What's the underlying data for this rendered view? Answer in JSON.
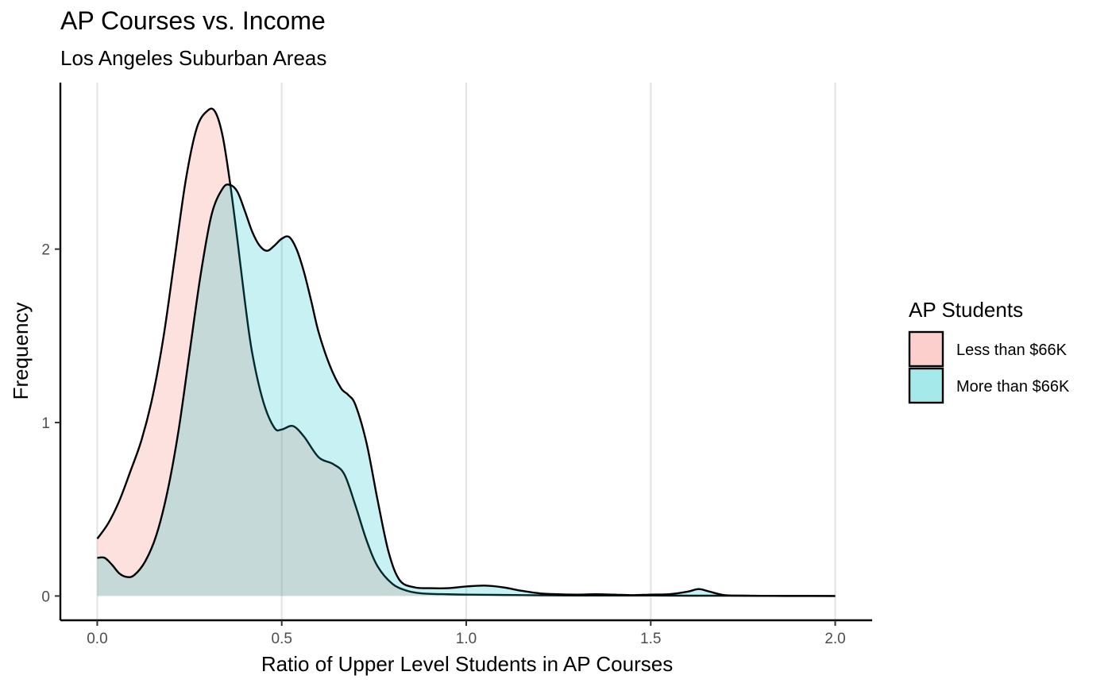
{
  "chart_data": {
    "type": "area",
    "title": "AP Courses vs. Income",
    "subtitle": "Los Angeles Suburban Areas",
    "xlabel": "Ratio of Upper Level Students in AP Courses",
    "ylabel": "Frequency",
    "xlim": [
      -0.1,
      2.1
    ],
    "ylim": [
      -0.14,
      2.96
    ],
    "x_ticks": [
      "0.0",
      "0.5",
      "1.0",
      "1.5",
      "2.0"
    ],
    "y_ticks": [
      "0",
      "1",
      "2"
    ],
    "grid": "vertical major",
    "legend_position": "right",
    "legend_title": "AP Students",
    "series": [
      {
        "name": "Less than $66K",
        "color": "#F8766D",
        "x": [
          0,
          0.03,
          0.06,
          0.09,
          0.12,
          0.15,
          0.18,
          0.21,
          0.24,
          0.27,
          0.3,
          0.32,
          0.34,
          0.36,
          0.38,
          0.4,
          0.42,
          0.45,
          0.48,
          0.5,
          0.53,
          0.56,
          0.6,
          0.64,
          0.67,
          0.7,
          0.73,
          0.76,
          0.8,
          0.84,
          0.88,
          0.95,
          1.0,
          1.1,
          1.2,
          1.3,
          1.4,
          1.5,
          1.6,
          1.7,
          1.8,
          1.9,
          2.0
        ],
        "y": [
          0.33,
          0.42,
          0.55,
          0.72,
          0.9,
          1.15,
          1.5,
          1.95,
          2.4,
          2.7,
          2.8,
          2.79,
          2.65,
          2.38,
          2.05,
          1.7,
          1.4,
          1.12,
          0.97,
          0.96,
          0.98,
          0.92,
          0.8,
          0.76,
          0.7,
          0.52,
          0.32,
          0.17,
          0.07,
          0.03,
          0.015,
          0.01,
          0.008,
          0.006,
          0.004,
          0.003,
          0.003,
          0.003,
          0.002,
          0.002,
          0.001,
          0.001,
          0.0
        ]
      },
      {
        "name": "More than $66K",
        "color": "#00BFC4",
        "x": [
          0,
          0.02,
          0.04,
          0.06,
          0.08,
          0.1,
          0.13,
          0.16,
          0.19,
          0.22,
          0.25,
          0.28,
          0.31,
          0.34,
          0.36,
          0.38,
          0.4,
          0.42,
          0.44,
          0.46,
          0.48,
          0.5,
          0.52,
          0.54,
          0.56,
          0.58,
          0.6,
          0.63,
          0.66,
          0.68,
          0.7,
          0.73,
          0.76,
          0.79,
          0.82,
          0.86,
          0.9,
          0.95,
          1.0,
          1.05,
          1.1,
          1.15,
          1.2,
          1.25,
          1.3,
          1.35,
          1.4,
          1.45,
          1.5,
          1.55,
          1.6,
          1.63,
          1.66,
          1.7,
          1.75,
          1.8,
          1.9,
          2.0
        ],
        "y": [
          0.22,
          0.22,
          0.18,
          0.13,
          0.11,
          0.12,
          0.2,
          0.35,
          0.6,
          0.95,
          1.4,
          1.85,
          2.2,
          2.35,
          2.37,
          2.33,
          2.22,
          2.1,
          2.02,
          1.99,
          2.02,
          2.06,
          2.07,
          2.0,
          1.87,
          1.7,
          1.52,
          1.33,
          1.2,
          1.16,
          1.1,
          0.88,
          0.55,
          0.25,
          0.09,
          0.05,
          0.045,
          0.045,
          0.055,
          0.06,
          0.05,
          0.03,
          0.015,
          0.01,
          0.008,
          0.01,
          0.008,
          0.005,
          0.008,
          0.01,
          0.025,
          0.04,
          0.025,
          0.005,
          0.002,
          0.001,
          0.0,
          0.0
        ]
      }
    ]
  }
}
